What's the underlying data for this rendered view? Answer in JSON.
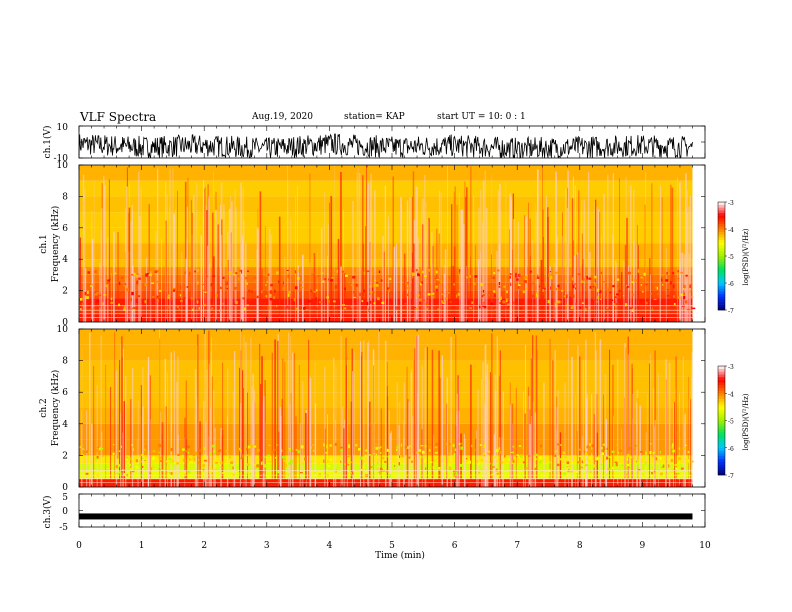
{
  "header": {
    "title": "VLF Spectra",
    "date": "Aug.19, 2020",
    "station": "station= KAP",
    "start": "start  UT  =   10: 0  : 1"
  },
  "panels": {
    "ch1": {
      "ylabel": "ch.1(V)",
      "ticks": [
        "10",
        "-10"
      ]
    },
    "spec1": {
      "ylabel": "ch.1\nFrequency (kHz)",
      "ticks": [
        "0",
        "2",
        "4",
        "6",
        "8",
        "10"
      ]
    },
    "spec2": {
      "ylabel": "ch.2\nFrequency (kHz)",
      "ticks": [
        "0",
        "2",
        "4",
        "6",
        "8",
        "10"
      ]
    },
    "ch3": {
      "ylabel": "ch.3(V)",
      "ticks": [
        "5",
        "0",
        "-5"
      ]
    }
  },
  "xaxis": {
    "label": "Time (min)",
    "ticks": [
      "0",
      "1",
      "2",
      "3",
      "4",
      "5",
      "6",
      "7",
      "8",
      "9",
      "10"
    ]
  },
  "colorbar": {
    "label": "log(PSD)(V²/Hz)",
    "ticks": [
      "-3",
      "-4",
      "-5",
      "-6",
      "-7"
    ]
  },
  "colors": {
    "cmap": [
      "#000070",
      "#0030ff",
      "#00c8ff",
      "#00e060",
      "#a0f000",
      "#ffff00",
      "#ff8000",
      "#ff0000",
      "#ffffff"
    ],
    "background": "#ffffff",
    "axis": "#000000"
  },
  "chart_data": [
    {
      "type": "line",
      "title": "VLF Spectra",
      "ylabel": "ch.1(V)",
      "xlabel": "Time (min)",
      "xlim": [
        0,
        10
      ],
      "ylim": [
        -10,
        10
      ],
      "series": [
        {
          "x": [
            0,
            1,
            2,
            3,
            4,
            5,
            6,
            7,
            8,
            9,
            9.8
          ],
          "values": [
            -4,
            -6,
            -5,
            -7,
            -4,
            -6,
            -5,
            -7,
            -6,
            -5,
            -6
          ]
        }
      ]
    },
    {
      "type": "heatmap",
      "ylabel": "ch.1\nFrequency (kHz)",
      "xlabel": "Time (min)",
      "xlim": [
        0,
        10
      ],
      "ylim": [
        0,
        10
      ],
      "zlabel": "log(PSD)(V²/Hz)",
      "zlim": [
        -7,
        -3
      ],
      "data_xlim": [
        0,
        9.8
      ],
      "band_edges_khz": [
        0,
        0.5,
        1,
        1.5,
        2,
        2.5,
        3,
        3.5,
        4,
        5,
        6,
        7,
        8,
        9,
        10
      ],
      "band_log_psd": [
        -3.6,
        -3.7,
        -3.6,
        -3.8,
        -3.9,
        -3.95,
        -4.05,
        -4.25,
        -4.2,
        -4.3,
        -4.3,
        -4.25,
        -4.3,
        -4.2
      ]
    },
    {
      "type": "heatmap",
      "ylabel": "ch.2\nFrequency (kHz)",
      "xlabel": "Time (min)",
      "xlim": [
        0,
        10
      ],
      "ylim": [
        0,
        10
      ],
      "zlabel": "log(PSD)(V²/Hz)",
      "zlim": [
        -7,
        -3
      ],
      "data_xlim": [
        0,
        9.8
      ],
      "band_edges_khz": [
        0,
        0.5,
        1,
        1.5,
        2,
        2.5,
        3,
        4,
        5,
        6,
        7,
        8,
        9,
        10
      ],
      "band_log_psd": [
        -3.6,
        -4.6,
        -4.7,
        -4.4,
        -4.1,
        -4.1,
        -4.1,
        -4.2,
        -4.25,
        -4.25,
        -4.25,
        -4.2,
        -4.2
      ]
    },
    {
      "type": "line",
      "ylabel": "ch.3(V)",
      "xlabel": "Time (min)",
      "xlim": [
        0,
        10
      ],
      "ylim": [
        -5,
        5
      ],
      "series": [
        {
          "x": [
            0,
            9.8
          ],
          "values": [
            -1.8,
            -1.8
          ]
        }
      ]
    }
  ]
}
